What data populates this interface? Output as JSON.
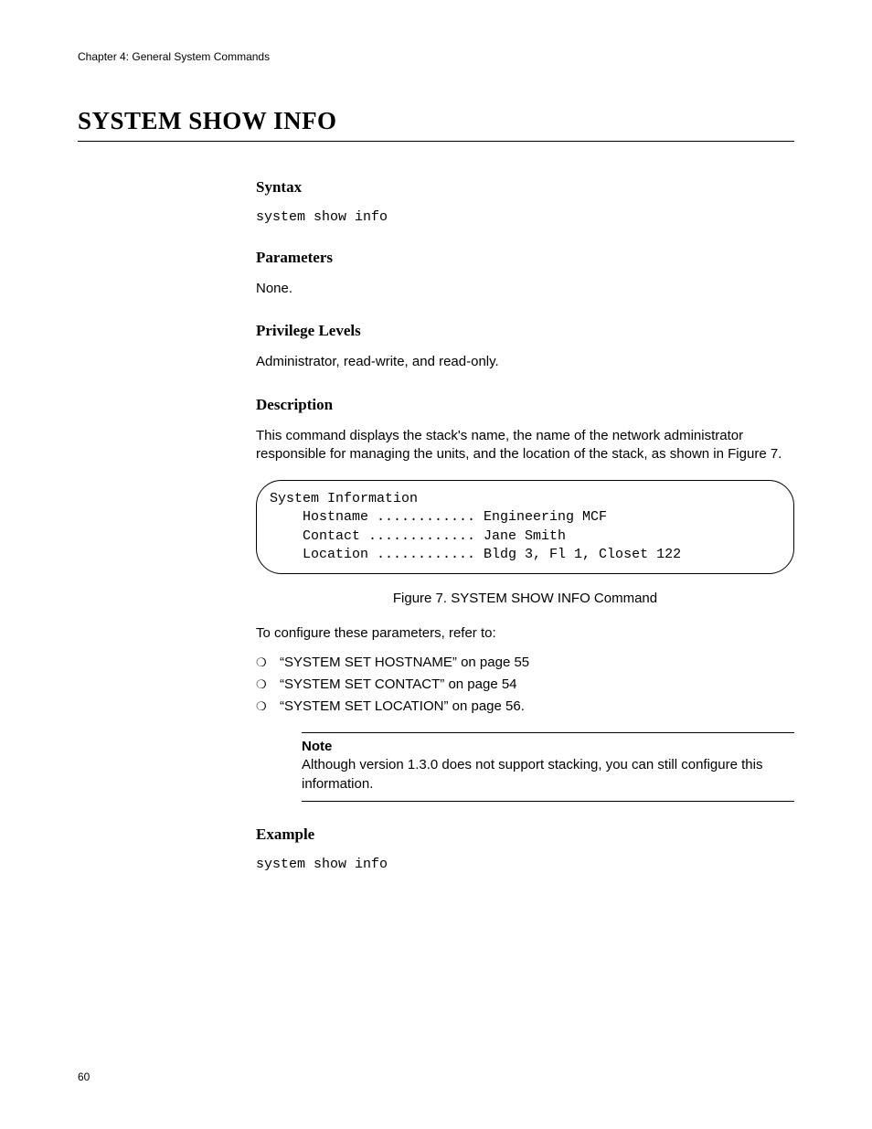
{
  "header": {
    "running": "Chapter 4: General System Commands"
  },
  "title": "SYSTEM SHOW INFO",
  "sections": {
    "syntax": {
      "heading": "Syntax",
      "code": "system show info"
    },
    "parameters": {
      "heading": "Parameters",
      "text": "None."
    },
    "privilege": {
      "heading": "Privilege Levels",
      "text": "Administrator, read-write, and read-only."
    },
    "description": {
      "heading": "Description",
      "intro": "This command displays the stack's name, the name of the network administrator responsible for managing the units, and the location of the stack, as shown in Figure 7.",
      "figure_box": "System Information\n    Hostname ............ Engineering MCF\n    Contact ............. Jane Smith\n    Location ............ Bldg 3, Fl 1, Closet 122",
      "figure_caption": "Figure 7. SYSTEM SHOW INFO Command",
      "refer_text": "To configure these parameters, refer to:",
      "bullets": [
        "“SYSTEM SET HOSTNAME” on page 55",
        "“SYSTEM SET CONTACT” on page 54",
        "“SYSTEM SET LOCATION” on page 56."
      ],
      "note_label": "Note",
      "note_text": "Although version 1.3.0 does not support stacking, you can still configure this information."
    },
    "example": {
      "heading": "Example",
      "code": "system show info"
    }
  },
  "page_number": "60",
  "bullet_glyph": "❍"
}
